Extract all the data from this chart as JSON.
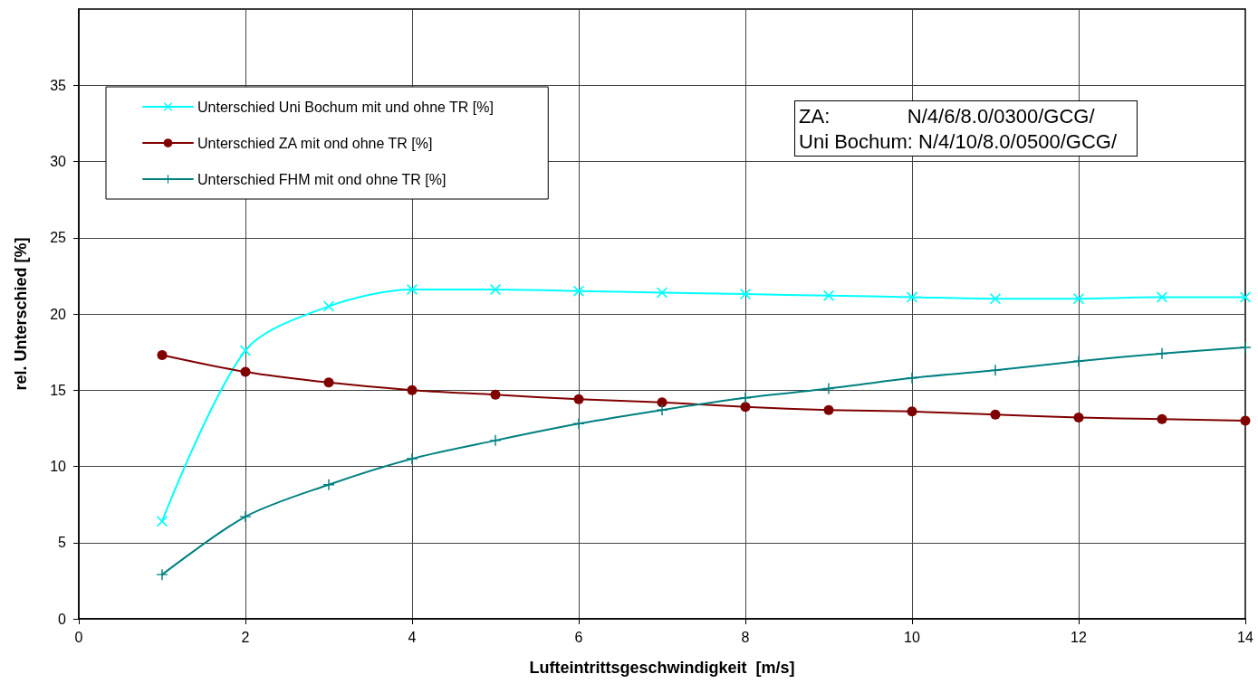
{
  "chart_data": {
    "type": "line",
    "xlabel": "Lufteintrittsgeschwindigkeit  [m/s]",
    "ylabel": "rel. Unterschied [%]",
    "x": [
      1,
      2,
      3,
      4,
      5,
      6,
      7,
      8,
      9,
      10,
      11,
      12,
      13,
      14
    ],
    "series": [
      {
        "name": "Unterschied Uni Bochum mit und ohne TR [%]",
        "color": "#00ffff",
        "marker": "x",
        "values": [
          6.4,
          17.6,
          20.5,
          21.6,
          21.6,
          21.5,
          21.4,
          21.3,
          21.2,
          21.1,
          21.0,
          21.0,
          21.1,
          21.1
        ]
      },
      {
        "name": "Unterschied ZA mit ond ohne TR [%]",
        "color": "#800000",
        "marker": "circle",
        "values": [
          17.3,
          16.2,
          15.5,
          15.0,
          14.7,
          14.4,
          14.2,
          13.9,
          13.7,
          13.6,
          13.4,
          13.2,
          13.1,
          13.0
        ]
      },
      {
        "name": "Unterschied FHM mit ond ohne TR [%]",
        "color": "#008080",
        "marker": "cross",
        "values": [
          2.9,
          6.7,
          8.8,
          10.5,
          11.7,
          12.8,
          13.7,
          14.5,
          15.1,
          15.8,
          16.3,
          16.9,
          17.4,
          17.8
        ]
      }
    ],
    "xlim": [
      0,
      14
    ],
    "xticks": [
      0,
      2,
      4,
      6,
      8,
      10,
      12,
      14
    ],
    "ylim": [
      0,
      40
    ],
    "yticks": [
      0,
      5,
      10,
      15,
      20,
      25,
      30,
      35
    ],
    "grid": true,
    "legend": "top left",
    "annotations": [
      "ZA:              N/4/6/8.0/0300/GCG/",
      "Uni Bochum: N/4/10/8.0/0500/GCG/"
    ]
  }
}
